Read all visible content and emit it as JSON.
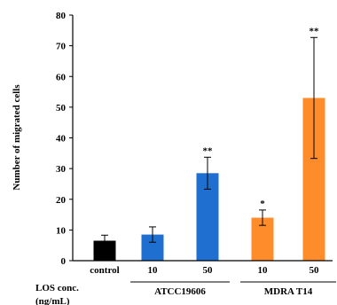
{
  "chart_data": {
    "type": "bar",
    "ylabel": "Number of migrated  cells",
    "ylim": [
      0,
      80
    ],
    "yticks": [
      0,
      10,
      20,
      30,
      40,
      50,
      60,
      70,
      80
    ],
    "bars": [
      {
        "label": "control",
        "value": 6.5,
        "error": 1.8,
        "color": "#000000",
        "sig": ""
      },
      {
        "label": "10",
        "value": 8.5,
        "error": 2.5,
        "color": "#1f6fd1",
        "sig": ""
      },
      {
        "label": "50",
        "value": 28.5,
        "error": 5.2,
        "color": "#1f6fd1",
        "sig": "**"
      },
      {
        "label": "10",
        "value": 14.0,
        "error": 2.5,
        "color": "#ff8c2a",
        "sig": "*"
      },
      {
        "label": "50",
        "value": 53.0,
        "error": 19.7,
        "color": "#ff8c2a",
        "sig": "**"
      }
    ],
    "groups": [
      {
        "name": "ATCC19606",
        "bars": [
          1,
          2
        ]
      },
      {
        "name": "MDRA T14",
        "bars": [
          3,
          4
        ]
      }
    ],
    "row_label_line1": "LOS conc.",
    "row_label_line2": "(ng/mL)"
  }
}
